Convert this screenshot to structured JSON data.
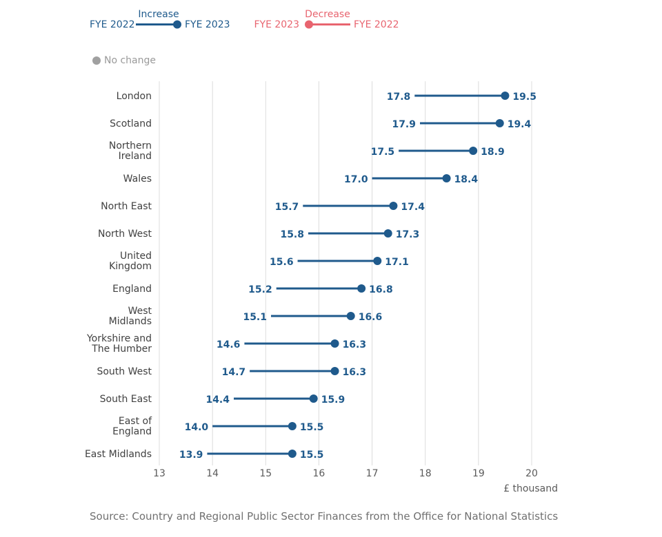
{
  "colors": {
    "increase": "#1f5a8c",
    "decrease": "#e8646f",
    "nochange": "#a0a0a0",
    "grid": "#dcdcdc",
    "axis_text": "#5a5a5a"
  },
  "legend": {
    "increase_title": "Increase",
    "increase_from": "FYE 2022",
    "increase_to": "FYE 2023",
    "decrease_title": "Decrease",
    "decrease_from": "FYE 2023",
    "decrease_to": "FYE 2022",
    "no_change": "No change"
  },
  "source": "Source: Country and Regional Public Sector Finances from the Office for National Statistics",
  "chart_data": {
    "type": "dumbbell",
    "xlabel": "£ thousand",
    "xlim": [
      13,
      20
    ],
    "xticks": [
      "13",
      "14",
      "15",
      "16",
      "17",
      "18",
      "19",
      "20"
    ],
    "grid": true,
    "legend_position": "top-left",
    "series": [
      {
        "name": "FYE 2022"
      },
      {
        "name": "FYE 2023"
      }
    ],
    "regions": [
      {
        "label": [
          "London"
        ],
        "fye2022": 17.8,
        "fye2023": 19.5,
        "label2022": "17.8",
        "label2023": "19.5"
      },
      {
        "label": [
          "Scotland"
        ],
        "fye2022": 17.9,
        "fye2023": 19.4,
        "label2022": "17.9",
        "label2023": "19.4"
      },
      {
        "label": [
          "Northern",
          "Ireland"
        ],
        "fye2022": 17.5,
        "fye2023": 18.9,
        "label2022": "17.5",
        "label2023": "18.9"
      },
      {
        "label": [
          "Wales"
        ],
        "fye2022": 17.0,
        "fye2023": 18.4,
        "label2022": "17.0",
        "label2023": "18.4"
      },
      {
        "label": [
          "North East"
        ],
        "fye2022": 15.7,
        "fye2023": 17.4,
        "label2022": "15.7",
        "label2023": "17.4"
      },
      {
        "label": [
          "North West"
        ],
        "fye2022": 15.8,
        "fye2023": 17.3,
        "label2022": "15.8",
        "label2023": "17.3"
      },
      {
        "label": [
          "United",
          "Kingdom"
        ],
        "fye2022": 15.6,
        "fye2023": 17.1,
        "label2022": "15.6",
        "label2023": "17.1"
      },
      {
        "label": [
          "England"
        ],
        "fye2022": 15.2,
        "fye2023": 16.8,
        "label2022": "15.2",
        "label2023": "16.8"
      },
      {
        "label": [
          "West",
          "Midlands"
        ],
        "fye2022": 15.1,
        "fye2023": 16.6,
        "label2022": "15.1",
        "label2023": "16.6"
      },
      {
        "label": [
          "Yorkshire and",
          "The Humber"
        ],
        "fye2022": 14.6,
        "fye2023": 16.3,
        "label2022": "14.6",
        "label2023": "16.3"
      },
      {
        "label": [
          "South West"
        ],
        "fye2022": 14.7,
        "fye2023": 16.3,
        "label2022": "14.7",
        "label2023": "16.3"
      },
      {
        "label": [
          "South East"
        ],
        "fye2022": 14.4,
        "fye2023": 15.9,
        "label2022": "14.4",
        "label2023": "15.9"
      },
      {
        "label": [
          "East of",
          "England"
        ],
        "fye2022": 14.0,
        "fye2023": 15.5,
        "label2022": "14.0",
        "label2023": "15.5"
      },
      {
        "label": [
          "East Midlands"
        ],
        "fye2022": 13.9,
        "fye2023": 15.5,
        "label2022": "13.9",
        "label2023": "15.5"
      }
    ]
  }
}
